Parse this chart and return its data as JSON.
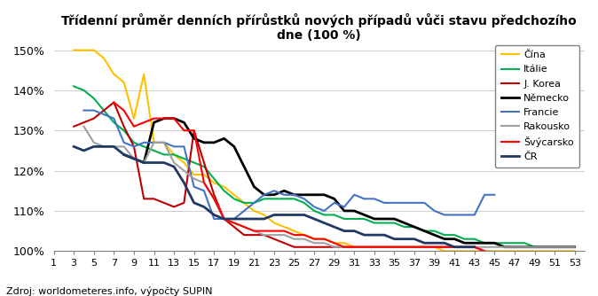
{
  "title": "Třídenní průměr denních přírůstků nových případů vůči stavu předchozího\ndne (100 %)",
  "source": "Zdroj: worldometeres.info, výpočty SUPIN",
  "ylim_low": 1.0,
  "ylim_high": 1.515,
  "yticks": [
    1.0,
    1.1,
    1.2,
    1.3,
    1.4,
    1.5
  ],
  "xlim_low": 1,
  "xlim_high": 54,
  "xticks": [
    1,
    3,
    5,
    7,
    9,
    11,
    13,
    15,
    17,
    19,
    21,
    23,
    25,
    27,
    29,
    31,
    33,
    35,
    37,
    39,
    41,
    43,
    45,
    47,
    49,
    51,
    53
  ],
  "series": [
    {
      "label": "Čína",
      "color": "#FFC000",
      "lw": 1.5,
      "x": [
        3,
        4,
        5,
        6,
        7,
        8,
        9,
        10,
        11,
        12,
        13,
        14,
        15,
        16,
        17,
        18,
        19,
        20,
        21,
        22,
        23,
        24,
        25,
        26,
        27,
        28,
        29,
        30,
        31,
        32,
        33,
        34,
        35,
        36,
        37,
        38,
        39,
        40,
        41,
        42,
        43,
        44,
        45,
        46,
        47,
        48,
        49,
        50,
        51,
        52,
        53
      ],
      "y": [
        1.5,
        1.5,
        1.5,
        1.48,
        1.44,
        1.42,
        1.33,
        1.44,
        1.27,
        1.27,
        1.24,
        1.22,
        1.19,
        1.19,
        1.17,
        1.16,
        1.14,
        1.12,
        1.1,
        1.09,
        1.07,
        1.06,
        1.05,
        1.04,
        1.03,
        1.03,
        1.02,
        1.02,
        1.01,
        1.01,
        1.01,
        1.01,
        1.01,
        1.01,
        1.01,
        1.01,
        1.01,
        1.0,
        1.0,
        1.0,
        1.0,
        1.0,
        1.0,
        1.0,
        1.0,
        1.0,
        1.0,
        1.0,
        1.0,
        1.0,
        1.0
      ]
    },
    {
      "label": "Itálie",
      "color": "#00B050",
      "lw": 1.5,
      "x": [
        3,
        4,
        5,
        6,
        7,
        8,
        9,
        10,
        11,
        12,
        13,
        14,
        15,
        16,
        17,
        18,
        19,
        20,
        21,
        22,
        23,
        24,
        25,
        26,
        27,
        28,
        29,
        30,
        31,
        32,
        33,
        34,
        35,
        36,
        37,
        38,
        39,
        40,
        41,
        42,
        43,
        44,
        45,
        46,
        47,
        48,
        49,
        50,
        51,
        52,
        53
      ],
      "y": [
        1.41,
        1.4,
        1.38,
        1.35,
        1.32,
        1.3,
        1.27,
        1.26,
        1.25,
        1.24,
        1.24,
        1.23,
        1.22,
        1.21,
        1.18,
        1.15,
        1.13,
        1.12,
        1.12,
        1.13,
        1.13,
        1.13,
        1.13,
        1.12,
        1.1,
        1.09,
        1.09,
        1.08,
        1.08,
        1.08,
        1.07,
        1.07,
        1.07,
        1.06,
        1.06,
        1.05,
        1.05,
        1.04,
        1.04,
        1.03,
        1.03,
        1.02,
        1.02,
        1.02,
        1.02,
        1.02,
        1.01,
        1.01,
        1.01,
        1.01,
        1.01
      ]
    },
    {
      "label": "J. Korea",
      "color": "#C00000",
      "lw": 1.5,
      "x": [
        3,
        4,
        5,
        6,
        7,
        8,
        9,
        10,
        11,
        12,
        13,
        14,
        15,
        16,
        17,
        18,
        19,
        20,
        21,
        22,
        23,
        24,
        25,
        26,
        27,
        28,
        29,
        30,
        31,
        32,
        33,
        34,
        35,
        36,
        37,
        38,
        39,
        40,
        41,
        42,
        43,
        44
      ],
      "y": [
        1.31,
        1.32,
        1.33,
        1.35,
        1.37,
        1.31,
        1.26,
        1.13,
        1.13,
        1.12,
        1.11,
        1.12,
        1.3,
        1.22,
        1.14,
        1.08,
        1.06,
        1.04,
        1.04,
        1.04,
        1.03,
        1.02,
        1.01,
        1.01,
        1.01,
        1.01,
        1.01,
        1.01,
        1.01,
        1.01,
        1.01,
        1.01,
        1.01,
        1.01,
        1.01,
        1.01,
        1.01,
        1.01,
        1.01,
        1.01,
        1.01,
        1.0
      ]
    },
    {
      "label": "Německo",
      "color": "#000000",
      "lw": 2.0,
      "x": [
        8,
        9,
        10,
        11,
        12,
        13,
        14,
        15,
        16,
        17,
        18,
        19,
        20,
        21,
        22,
        23,
        24,
        25,
        26,
        27,
        28,
        29,
        30,
        31,
        32,
        33,
        34,
        35,
        36,
        37,
        38,
        39,
        40,
        41,
        42,
        43,
        44,
        45,
        46,
        47,
        48,
        49,
        50,
        51,
        52,
        53
      ],
      "y": [
        1.24,
        1.23,
        1.22,
        1.32,
        1.33,
        1.33,
        1.32,
        1.28,
        1.27,
        1.27,
        1.28,
        1.26,
        1.21,
        1.16,
        1.14,
        1.14,
        1.15,
        1.14,
        1.14,
        1.14,
        1.14,
        1.13,
        1.1,
        1.1,
        1.09,
        1.08,
        1.08,
        1.08,
        1.07,
        1.06,
        1.05,
        1.04,
        1.03,
        1.03,
        1.02,
        1.02,
        1.02,
        1.02,
        1.01,
        1.01,
        1.01,
        1.01,
        1.01,
        1.01,
        1.01,
        1.01
      ]
    },
    {
      "label": "Francie",
      "color": "#4472C4",
      "lw": 1.5,
      "x": [
        4,
        5,
        6,
        7,
        8,
        9,
        10,
        11,
        12,
        13,
        14,
        15,
        16,
        17,
        18,
        19,
        20,
        21,
        22,
        23,
        24,
        25,
        26,
        27,
        28,
        29,
        30,
        31,
        32,
        33,
        34,
        35,
        36,
        37,
        38,
        39,
        40,
        41,
        42,
        43,
        44,
        45
      ],
      "y": [
        1.35,
        1.35,
        1.34,
        1.33,
        1.27,
        1.26,
        1.27,
        1.27,
        1.27,
        1.26,
        1.26,
        1.16,
        1.15,
        1.08,
        1.08,
        1.08,
        1.1,
        1.12,
        1.14,
        1.15,
        1.14,
        1.14,
        1.13,
        1.11,
        1.1,
        1.12,
        1.11,
        1.14,
        1.13,
        1.13,
        1.12,
        1.12,
        1.12,
        1.12,
        1.12,
        1.1,
        1.09,
        1.09,
        1.09,
        1.09,
        1.14,
        1.14
      ]
    },
    {
      "label": "Rakousko",
      "color": "#A0A0A0",
      "lw": 1.5,
      "x": [
        4,
        5,
        6,
        7,
        8,
        9,
        10,
        11,
        12,
        13,
        14,
        15,
        16,
        17,
        18,
        19,
        20,
        21,
        22,
        23,
        24,
        25,
        26,
        27,
        28,
        29,
        30,
        31,
        32,
        33,
        34,
        35,
        36,
        37,
        38,
        39,
        40,
        41,
        42,
        43,
        44,
        45,
        46,
        47,
        48,
        49,
        50,
        51,
        52,
        53
      ],
      "y": [
        1.31,
        1.27,
        1.26,
        1.26,
        1.26,
        1.23,
        1.22,
        1.27,
        1.27,
        1.22,
        1.2,
        1.18,
        1.17,
        1.13,
        1.08,
        1.07,
        1.06,
        1.05,
        1.04,
        1.04,
        1.04,
        1.03,
        1.03,
        1.02,
        1.02,
        1.01,
        1.01,
        1.01,
        1.01,
        1.01,
        1.01,
        1.01,
        1.01,
        1.01,
        1.01,
        1.01,
        1.01,
        1.01,
        1.01,
        1.01,
        1.01,
        1.01,
        1.01,
        1.01,
        1.01,
        1.01,
        1.01,
        1.01,
        1.01,
        1.01
      ]
    },
    {
      "label": "Švýcarsko",
      "color": "#FF0000",
      "lw": 1.5,
      "x": [
        7,
        8,
        9,
        10,
        11,
        12,
        13,
        14,
        15,
        16,
        17,
        18,
        19,
        20,
        21,
        22,
        23,
        24,
        25,
        26,
        27,
        28,
        29,
        30,
        31,
        32,
        33,
        34,
        35,
        36,
        37,
        38,
        39,
        40,
        41,
        42,
        43,
        44
      ],
      "y": [
        1.37,
        1.35,
        1.31,
        1.32,
        1.33,
        1.33,
        1.33,
        1.3,
        1.3,
        1.17,
        1.13,
        1.08,
        1.07,
        1.06,
        1.05,
        1.05,
        1.05,
        1.05,
        1.04,
        1.04,
        1.03,
        1.03,
        1.02,
        1.01,
        1.01,
        1.01,
        1.01,
        1.01,
        1.01,
        1.01,
        1.01,
        1.01,
        1.01,
        1.01,
        1.01,
        1.01,
        1.01,
        1.0
      ]
    },
    {
      "label": "ČR",
      "color": "#1F3864",
      "lw": 2.0,
      "x": [
        3,
        4,
        5,
        6,
        7,
        8,
        9,
        10,
        11,
        12,
        13,
        14,
        15,
        16,
        17,
        18,
        19,
        20,
        21,
        22,
        23,
        24,
        25,
        26,
        27,
        28,
        29,
        30,
        31,
        32,
        33,
        34,
        35,
        36,
        37,
        38,
        39,
        40,
        41,
        42,
        43
      ],
      "y": [
        1.26,
        1.25,
        1.26,
        1.26,
        1.26,
        1.24,
        1.23,
        1.22,
        1.22,
        1.22,
        1.21,
        1.17,
        1.12,
        1.11,
        1.09,
        1.08,
        1.08,
        1.08,
        1.08,
        1.08,
        1.09,
        1.09,
        1.09,
        1.09,
        1.08,
        1.07,
        1.06,
        1.05,
        1.05,
        1.04,
        1.04,
        1.04,
        1.03,
        1.03,
        1.03,
        1.02,
        1.02,
        1.02,
        1.01,
        1.01,
        1.01
      ]
    }
  ]
}
